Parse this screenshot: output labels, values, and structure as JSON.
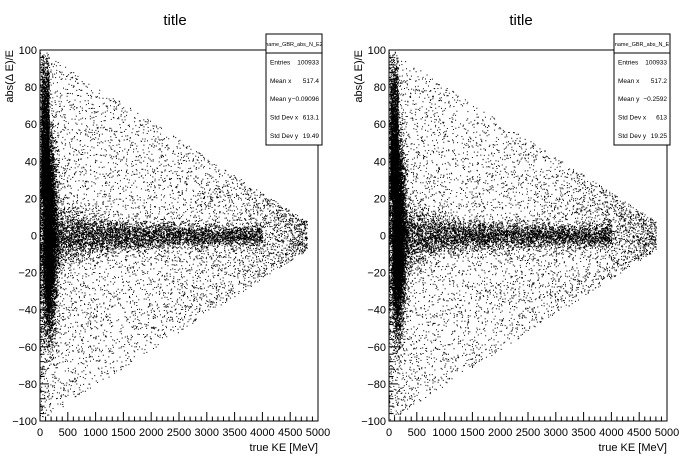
{
  "chart_data": [
    {
      "type": "scatter",
      "title": "title",
      "xlabel": "true KE [MeV]",
      "ylabel": "abs(Δ E)/E",
      "xlim": [
        0,
        5000
      ],
      "ylim": [
        -100,
        100
      ],
      "xticks": [
        "0",
        "500",
        "1000",
        "1500",
        "2000",
        "2500",
        "3000",
        "3500",
        "4000",
        "4500",
        "5000"
      ],
      "yticks": [
        "−100",
        "−80",
        "−60",
        "−40",
        "−20",
        "0",
        "20",
        "40",
        "60",
        "80",
        "100"
      ],
      "legend": "top-right",
      "grid": false,
      "stats": {
        "name": "name_GBR_abs_N_E2",
        "rows": [
          {
            "label": "Entries",
            "value": "100933"
          },
          {
            "label": "Mean x",
            "value": "517.4"
          },
          {
            "label": "Mean y",
            "value": "−0.09096"
          },
          {
            "label": "Std Dev x",
            "value": "613.1"
          },
          {
            "label": "Std Dev y",
            "value": "19.49"
          }
        ]
      }
    },
    {
      "type": "scatter",
      "title": "title",
      "xlabel": "true KE [MeV]",
      "ylabel": "abs(Δ E)/E",
      "xlim": [
        0,
        5000
      ],
      "ylim": [
        -100,
        100
      ],
      "xticks": [
        "0",
        "500",
        "1000",
        "1500",
        "2000",
        "2500",
        "3000",
        "3500",
        "4000",
        "4500",
        "5000"
      ],
      "yticks": [
        "−100",
        "−80",
        "−60",
        "−40",
        "−20",
        "0",
        "20",
        "40",
        "60",
        "80",
        "100"
      ],
      "legend": "top-right",
      "grid": false,
      "stats": {
        "name": "name_GBR_abs_N_E",
        "rows": [
          {
            "label": "Entries",
            "value": "100933"
          },
          {
            "label": "Mean x",
            "value": "517.2"
          },
          {
            "label": "Mean y",
            "value": "−0.2592"
          },
          {
            "label": "Std Dev x",
            "value": "613"
          },
          {
            "label": "Std Dev y",
            "value": "19.25"
          }
        ]
      }
    }
  ]
}
